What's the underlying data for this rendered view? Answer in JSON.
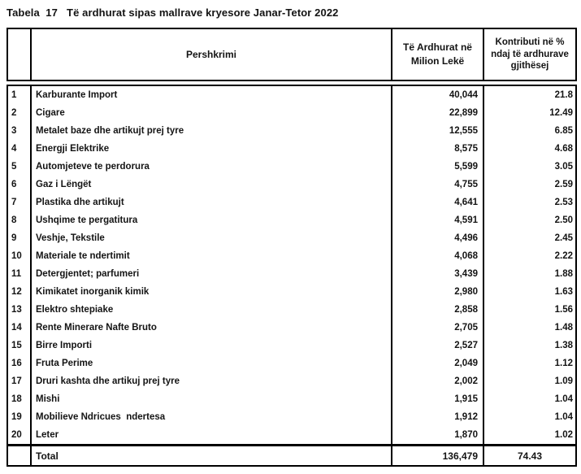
{
  "title": "Tabela  17   Të ardhurat sipas mallrave kryesore Janar-Tetor 2022",
  "table": {
    "headers": {
      "number": "",
      "description": "Pershkrimi",
      "revenue": "Të Ardhurat në Milion Lekë",
      "contribution": "Kontributi në % ndaj të ardhurave gjithësej"
    },
    "rows": [
      {
        "no": "1",
        "description": "Karburante Import",
        "revenue": "40,044",
        "contribution": "21.8"
      },
      {
        "no": "2",
        "description": "Cigare",
        "revenue": "22,899",
        "contribution": "12.49"
      },
      {
        "no": "3",
        "description": "Metalet baze dhe artikujt prej tyre",
        "revenue": "12,555",
        "contribution": "6.85"
      },
      {
        "no": "4",
        "description": "Energji Elektrike",
        "revenue": "8,575",
        "contribution": "4.68"
      },
      {
        "no": "5",
        "description": "Automjeteve te perdorura",
        "revenue": "5,599",
        "contribution": "3.05"
      },
      {
        "no": "6",
        "description": "Gaz i Lëngët",
        "revenue": "4,755",
        "contribution": "2.59"
      },
      {
        "no": "7",
        "description": "Plastika dhe artikujt",
        "revenue": "4,641",
        "contribution": "2.53"
      },
      {
        "no": "8",
        "description": "Ushqime te pergatitura",
        "revenue": "4,591",
        "contribution": "2.50"
      },
      {
        "no": "9",
        "description": "Veshje, Tekstile",
        "revenue": "4,496",
        "contribution": "2.45"
      },
      {
        "no": "10",
        "description": "Materiale te ndertimit",
        "revenue": "4,068",
        "contribution": "2.22"
      },
      {
        "no": "11",
        "description": "Detergjentet; parfumeri",
        "revenue": "3,439",
        "contribution": "1.88"
      },
      {
        "no": "12",
        "description": "Kimikatet inorganik kimik",
        "revenue": "2,980",
        "contribution": "1.63"
      },
      {
        "no": "13",
        "description": "Elektro shtepiake",
        "revenue": "2,858",
        "contribution": "1.56"
      },
      {
        "no": "14",
        "description": "Rente Minerare Nafte Bruto",
        "revenue": "2,705",
        "contribution": "1.48"
      },
      {
        "no": "15",
        "description": "Birre Importi",
        "revenue": "2,527",
        "contribution": "1.38"
      },
      {
        "no": "16",
        "description": "Fruta Perime",
        "revenue": "2,049",
        "contribution": "1.12"
      },
      {
        "no": "17",
        "description": "Druri kashta dhe artikuj prej tyre",
        "revenue": "2,002",
        "contribution": "1.09"
      },
      {
        "no": "18",
        "description": "Mishi",
        "revenue": "1,915",
        "contribution": "1.04"
      },
      {
        "no": "19",
        "description": "Mobilieve Ndricues  ndertesa",
        "revenue": "1,912",
        "contribution": "1.04"
      },
      {
        "no": "20",
        "description": "Leter",
        "revenue": "1,870",
        "contribution": "1.02"
      }
    ],
    "total": {
      "label": "Total",
      "revenue": "136,479",
      "contribution": "74.43"
    }
  },
  "colors": {
    "border": "#000000",
    "text": "#141414",
    "background": "#ffffff"
  }
}
